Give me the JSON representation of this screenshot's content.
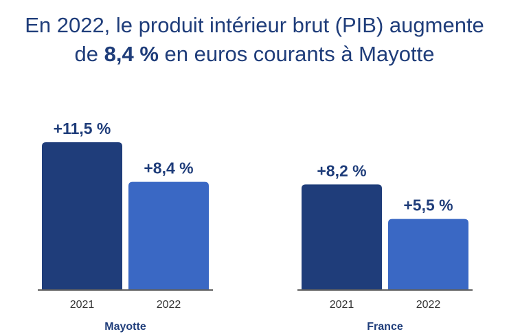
{
  "title": {
    "line1": "En 2022, le produit intérieur brut (PIB) augmente",
    "line2_prefix": "de ",
    "line2_bold": "8,4 %",
    "line2_suffix": " en euros courants à Mayotte"
  },
  "colors": {
    "title": "#1f3d7a",
    "bar_2021": "#1f3d7a",
    "bar_2022": "#3a68c4",
    "label": "#1f3d7a",
    "axis": "#2a2a2a",
    "tick": "#333333"
  },
  "chart_data": {
    "type": "bar",
    "title": "En 2022, le produit intérieur brut (PIB) augmente de 8,4 % en euros courants à Mayotte",
    "xlabel": "",
    "ylabel": "",
    "ylim": [
      0,
      11.5
    ],
    "grid": false,
    "legend": "none",
    "groups": [
      {
        "name": "Mayotte",
        "bars": [
          {
            "category": "2021",
            "value": 11.5,
            "label": "+11,5 %"
          },
          {
            "category": "2022",
            "value": 8.4,
            "label": "+8,4 %"
          }
        ]
      },
      {
        "name": "France",
        "bars": [
          {
            "category": "2021",
            "value": 8.2,
            "label": "+8,2 %"
          },
          {
            "category": "2022",
            "value": 5.5,
            "label": "+5,5 %"
          }
        ]
      }
    ]
  }
}
